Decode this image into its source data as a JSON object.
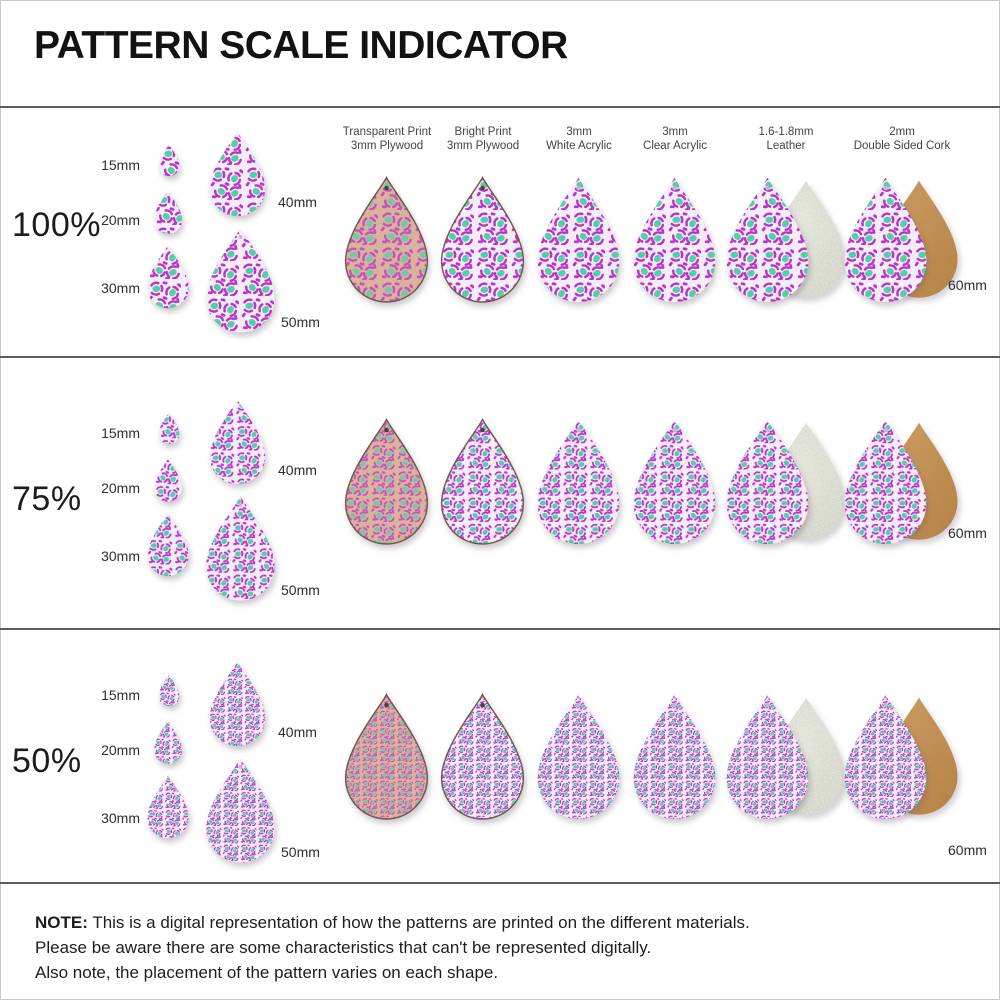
{
  "title": "PATTERN SCALE INDICATOR",
  "materials": [
    {
      "line1": "Transparent Print",
      "line2": "3mm Plywood"
    },
    {
      "line1": "Bright Print",
      "line2": "3mm Plywood"
    },
    {
      "line1": "3mm",
      "line2": "White Acrylic"
    },
    {
      "line1": "3mm",
      "line2": "Clear Acrylic"
    },
    {
      "line1": "1.6-1.8mm",
      "line2": "Leather"
    },
    {
      "line1": "2mm",
      "line2": "Double Sided Cork"
    }
  ],
  "rows": [
    {
      "scale_label": "100%",
      "sizes": [
        "15mm",
        "20mm",
        "30mm",
        "40mm",
        "50mm"
      ],
      "large_size": "60mm"
    },
    {
      "scale_label": "75%",
      "sizes": [
        "15mm",
        "20mm",
        "30mm",
        "40mm",
        "50mm"
      ],
      "large_size": "60mm"
    },
    {
      "scale_label": "50%",
      "sizes": [
        "15mm",
        "20mm",
        "30mm",
        "40mm",
        "50mm"
      ],
      "large_size": "60mm"
    }
  ],
  "note": {
    "label": "NOTE:",
    "line1": "This is a digital representation of how the patterns are printed on the different materials.",
    "line2": "Please be aware there are some characteristics that can't be represented digitally.",
    "line3": "Also note, the placement of the pattern varies on each shape."
  },
  "colors": {
    "pattern_magenta": "#b833c8",
    "pattern_teal": "#55cda9",
    "pattern_bg": "#f4ecf6",
    "plywood_tan": "#dbb29b",
    "leather_gray": "#c9ccc0",
    "cork_tan": "#c08a52",
    "divider_gray": "#5c5c5e"
  }
}
